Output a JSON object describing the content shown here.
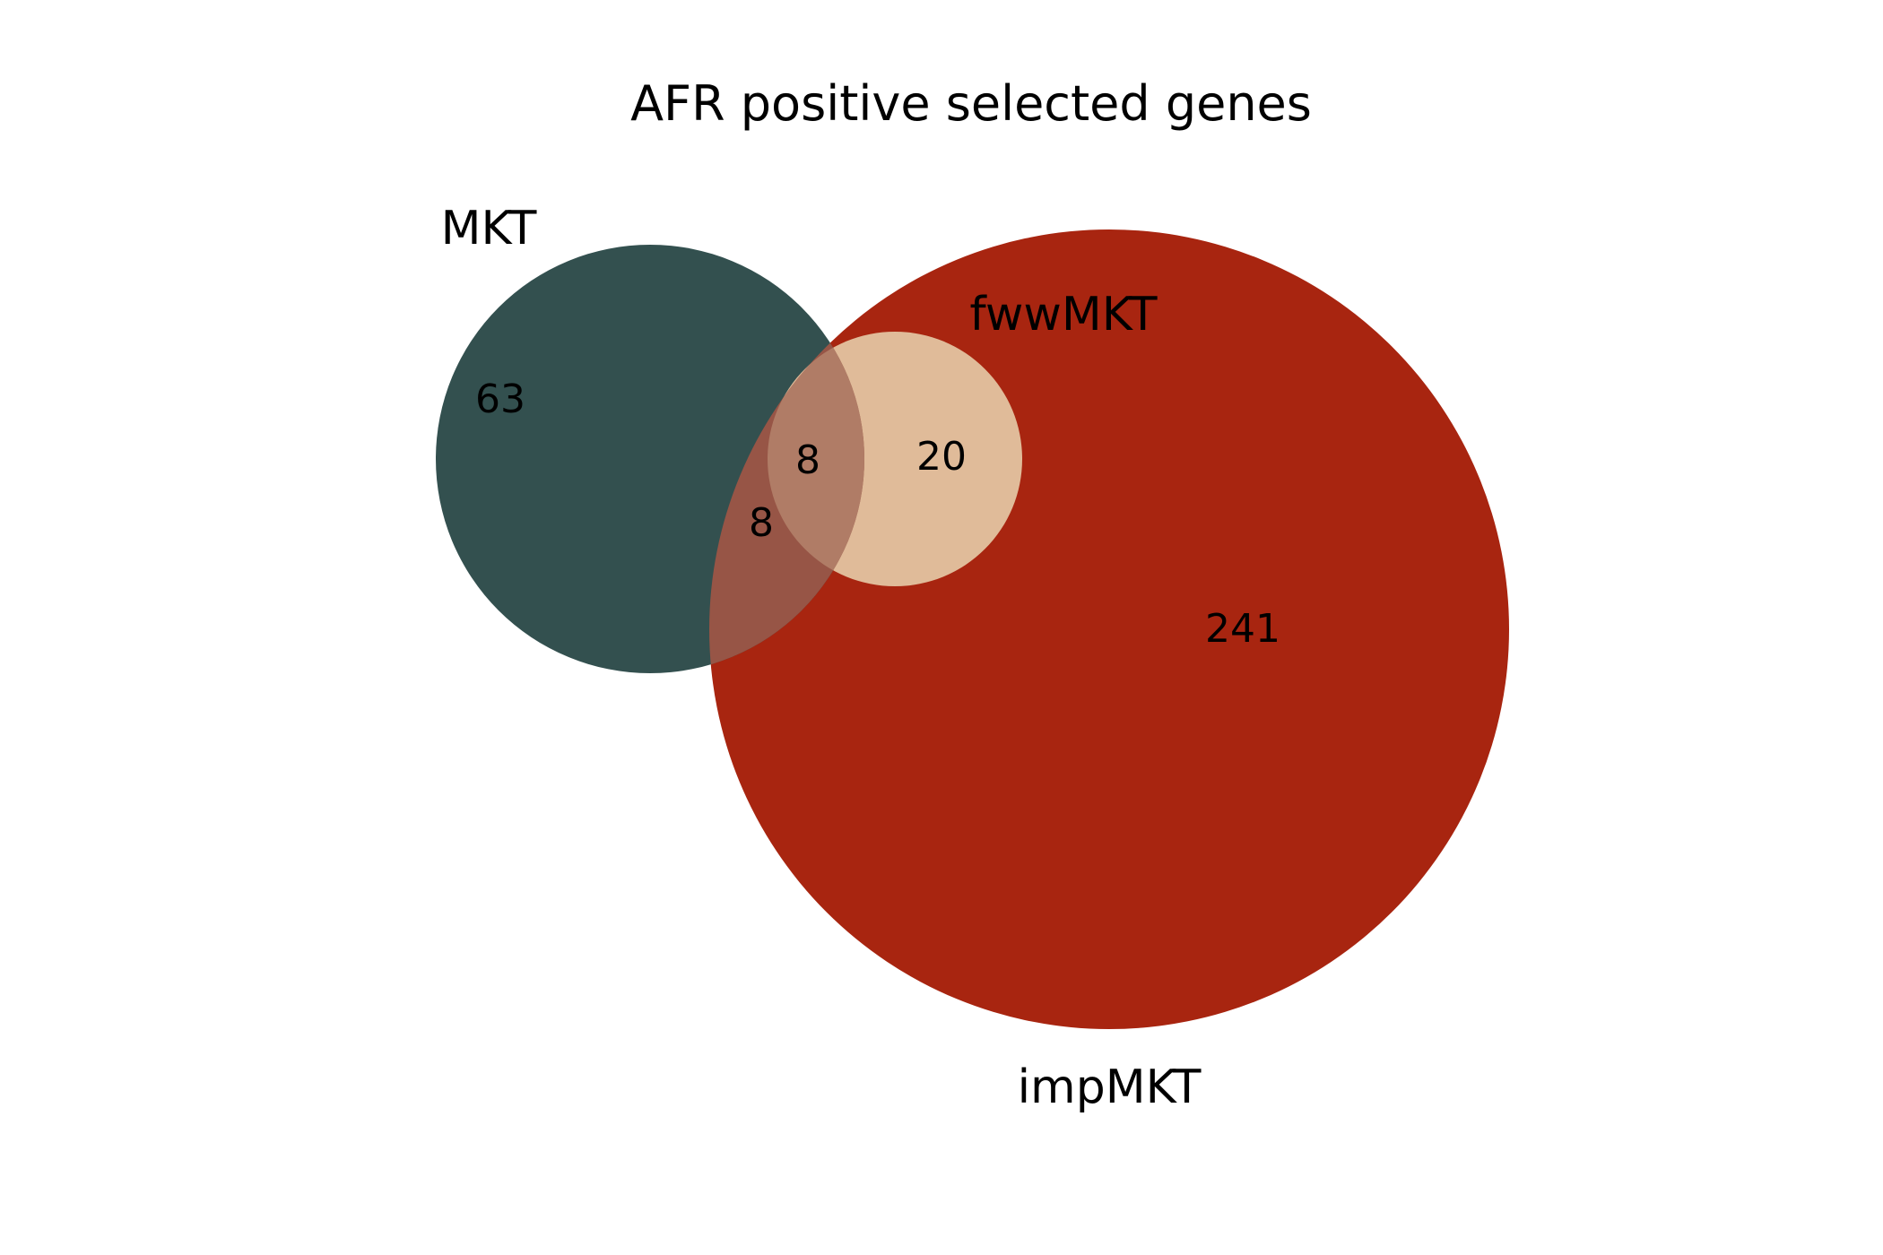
{
  "title": "AFR positive selected genes",
  "sets": [
    {
      "id": "mkt",
      "label": "MKT",
      "color": "#33504f"
    },
    {
      "id": "fwwmkt",
      "label": "fwwMKT",
      "color": "#e0bb99"
    },
    {
      "id": "impmkt",
      "label": "impMKT",
      "color": "#a82510"
    }
  ],
  "regions": [
    {
      "id": "mkt-only",
      "sets": [
        "MKT"
      ],
      "count": "63"
    },
    {
      "id": "mkt-fwwmkt-impmkt",
      "sets": [
        "MKT",
        "fwwMKT",
        "impMKT"
      ],
      "count": "8"
    },
    {
      "id": "mkt-impmkt",
      "sets": [
        "MKT",
        "impMKT"
      ],
      "count": "8"
    },
    {
      "id": "fwwmkt-impmkt",
      "sets": [
        "fwwMKT",
        "impMKT"
      ],
      "count": "20"
    },
    {
      "id": "impmkt-only",
      "sets": [
        "impMKT"
      ],
      "count": "241"
    }
  ],
  "region_colors": {
    "mkt-impmkt": "#975546",
    "mkt-fwwmkt-impmkt": "#b07c66"
  }
}
